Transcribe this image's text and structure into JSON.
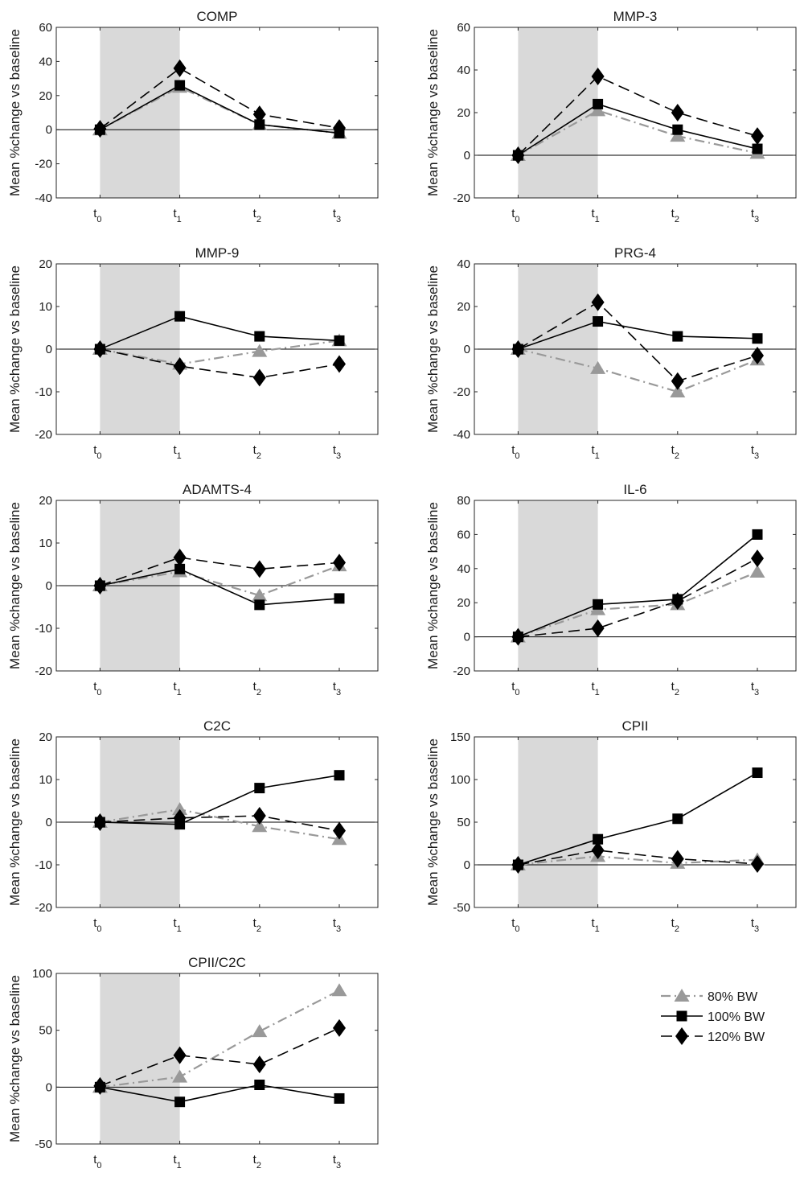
{
  "figure": {
    "series_styles": [
      {
        "key": "80",
        "name": "80% BW",
        "color": "#999999",
        "marker": "triangle",
        "dash": "dash-dot"
      },
      {
        "key": "100",
        "name": "100% BW",
        "color": "#000000",
        "marker": "square",
        "dash": "solid"
      },
      {
        "key": "120",
        "name": "120% BW",
        "color": "#000000",
        "marker": "diamond",
        "dash": "dashed"
      }
    ],
    "x_tick_labels": [
      {
        "base": "t",
        "sub": "0"
      },
      {
        "base": "t",
        "sub": "1"
      },
      {
        "base": "t",
        "sub": "2"
      },
      {
        "base": "t",
        "sub": "3"
      }
    ],
    "shaded_region": "t0 to t1",
    "shade_color": "#d9d9d9"
  },
  "chart_data": [
    {
      "type": "line",
      "title": "COMP",
      "ylabel": "Mean %change vs baseline",
      "xlabel": "",
      "x": [
        "t0",
        "t1",
        "t2",
        "t3"
      ],
      "ylim": [
        -40,
        60
      ],
      "yticks": [
        -40,
        -20,
        0,
        20,
        40,
        60
      ],
      "series": [
        {
          "name": "80% BW",
          "values": [
            0,
            25,
            3,
            -2
          ]
        },
        {
          "name": "100% BW",
          "values": [
            0,
            26,
            3,
            -2
          ]
        },
        {
          "name": "120% BW",
          "values": [
            0.5,
            36,
            9,
            1
          ]
        }
      ]
    },
    {
      "type": "line",
      "title": "MMP-3",
      "ylabel": "Mean %change vs baseline",
      "xlabel": "",
      "x": [
        "t0",
        "t1",
        "t2",
        "t3"
      ],
      "ylim": [
        -20,
        60
      ],
      "yticks": [
        -20,
        0,
        20,
        40,
        60
      ],
      "series": [
        {
          "name": "80% BW",
          "values": [
            0,
            21,
            9,
            1
          ]
        },
        {
          "name": "100% BW",
          "values": [
            0,
            24,
            12,
            3
          ]
        },
        {
          "name": "120% BW",
          "values": [
            0,
            37,
            20,
            9
          ]
        }
      ]
    },
    {
      "type": "line",
      "title": "MMP-9",
      "ylabel": "Mean %change vs baseline",
      "xlabel": "",
      "x": [
        "t0",
        "t1",
        "t2",
        "t3"
      ],
      "ylim": [
        -20,
        20
      ],
      "yticks": [
        -20,
        -10,
        0,
        10,
        20
      ],
      "series": [
        {
          "name": "80% BW",
          "values": [
            0,
            -3.5,
            -0.5,
            2
          ]
        },
        {
          "name": "100% BW",
          "values": [
            0,
            7.7,
            3,
            2
          ]
        },
        {
          "name": "120% BW",
          "values": [
            0,
            -4,
            -6.7,
            -3.5
          ]
        }
      ]
    },
    {
      "type": "line",
      "title": "PRG-4",
      "ylabel": "Mean %change vs baseline",
      "xlabel": "",
      "x": [
        "t0",
        "t1",
        "t2",
        "t3"
      ],
      "ylim": [
        -40,
        40
      ],
      "yticks": [
        -40,
        -20,
        0,
        20,
        40
      ],
      "series": [
        {
          "name": "80% BW",
          "values": [
            0,
            -9,
            -20,
            -5
          ]
        },
        {
          "name": "100% BW",
          "values": [
            0,
            13,
            6,
            5
          ]
        },
        {
          "name": "120% BW",
          "values": [
            0,
            22,
            -15,
            -3
          ]
        }
      ]
    },
    {
      "type": "line",
      "title": "ADAMTS-4",
      "ylabel": "Mean %change vs baseline",
      "xlabel": "",
      "x": [
        "t0",
        "t1",
        "t2",
        "t3"
      ],
      "ylim": [
        -20,
        20
      ],
      "yticks": [
        -20,
        -10,
        0,
        10,
        20
      ],
      "series": [
        {
          "name": "80% BW",
          "values": [
            0,
            3.3,
            -2.3,
            4.7
          ]
        },
        {
          "name": "100% BW",
          "values": [
            0,
            3.9,
            -4.5,
            -3
          ]
        },
        {
          "name": "120% BW",
          "values": [
            0,
            6.6,
            3.9,
            5.4
          ]
        }
      ]
    },
    {
      "type": "line",
      "title": "IL-6",
      "ylabel": "Mean %change vs baseline",
      "xlabel": "",
      "x": [
        "t0",
        "t1",
        "t2",
        "t3"
      ],
      "ylim": [
        -20,
        80
      ],
      "yticks": [
        -20,
        0,
        20,
        40,
        60,
        80
      ],
      "series": [
        {
          "name": "80% BW",
          "values": [
            0,
            16,
            19,
            38
          ]
        },
        {
          "name": "100% BW",
          "values": [
            0,
            19,
            22,
            60
          ]
        },
        {
          "name": "120% BW",
          "values": [
            0,
            5,
            21,
            46
          ]
        }
      ]
    },
    {
      "type": "line",
      "title": "C2C",
      "ylabel": "Mean %change vs baseline",
      "xlabel": "",
      "x": [
        "t0",
        "t1",
        "t2",
        "t3"
      ],
      "ylim": [
        -20,
        20
      ],
      "yticks": [
        -20,
        -10,
        0,
        10,
        20
      ],
      "series": [
        {
          "name": "80% BW",
          "values": [
            0,
            3,
            -1,
            -4
          ]
        },
        {
          "name": "100% BW",
          "values": [
            0,
            -0.5,
            8,
            11
          ]
        },
        {
          "name": "120% BW",
          "values": [
            0,
            1,
            1.5,
            -2
          ]
        }
      ]
    },
    {
      "type": "line",
      "title": "CPII",
      "ylabel": "Mean %change vs baseline",
      "xlabel": "",
      "x": [
        "t0",
        "t1",
        "t2",
        "t3"
      ],
      "ylim": [
        -50,
        150
      ],
      "yticks": [
        -50,
        0,
        50,
        100,
        150
      ],
      "series": [
        {
          "name": "80% BW",
          "values": [
            0,
            10,
            2,
            6
          ]
        },
        {
          "name": "100% BW",
          "values": [
            0,
            30,
            54,
            108
          ]
        },
        {
          "name": "120% BW",
          "values": [
            0,
            17,
            7,
            1
          ]
        }
      ]
    },
    {
      "type": "line",
      "title": "CPII/C2C",
      "ylabel": "Mean %change vs baseline",
      "xlabel": "",
      "x": [
        "t0",
        "t1",
        "t2",
        "t3"
      ],
      "ylim": [
        -50,
        100
      ],
      "yticks": [
        -50,
        0,
        50,
        100
      ],
      "series": [
        {
          "name": "80% BW",
          "values": [
            0,
            9,
            49,
            85
          ]
        },
        {
          "name": "100% BW",
          "values": [
            0,
            -13,
            2,
            -10
          ]
        },
        {
          "name": "120% BW",
          "values": [
            1,
            28,
            20,
            52
          ]
        }
      ]
    }
  ],
  "legend": {
    "placement": "bottom-right",
    "entries": [
      "80% BW",
      "100% BW",
      "120% BW"
    ]
  }
}
